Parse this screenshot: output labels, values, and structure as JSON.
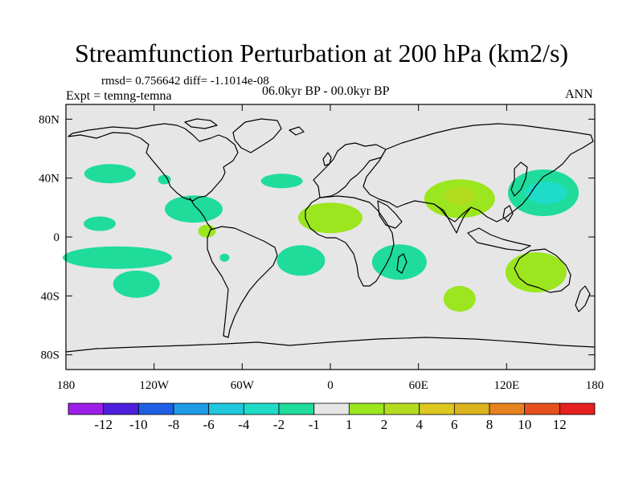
{
  "chart_data": {
    "type": "map-contour",
    "title": "Streamfunction Perturbation at 200 hPa (km2/s)",
    "stats_text": "rmsd= 0.756642 diff= -1.1014e-08",
    "experiment_text": "Expt = temng-temna",
    "period_text": "06.0kyr BP - 00.0kyr BP",
    "season_text": "ANN",
    "x_axis": {
      "range": [
        -180,
        180
      ],
      "ticks": [
        {
          "value": -180,
          "label": "180"
        },
        {
          "value": -120,
          "label": "120W"
        },
        {
          "value": -60,
          "label": "60W"
        },
        {
          "value": 0,
          "label": "0"
        },
        {
          "value": 60,
          "label": "60E"
        },
        {
          "value": 120,
          "label": "120E"
        },
        {
          "value": 180,
          "label": "180"
        }
      ]
    },
    "y_axis": {
      "range": [
        -90,
        90
      ],
      "ticks": [
        {
          "value": 80,
          "label": "80N"
        },
        {
          "value": 40,
          "label": "40N"
        },
        {
          "value": 0,
          "label": "0"
        },
        {
          "value": -40,
          "label": "40S"
        },
        {
          "value": -80,
          "label": "80S"
        }
      ]
    },
    "colorbar": {
      "colors": [
        "#9b1fe6",
        "#4d1fdc",
        "#1f5fe6",
        "#1f9be6",
        "#1fc8dc",
        "#1fdcc8",
        "#1fdc9b",
        "#e6e6e6",
        "#9be61f",
        "#b4dc1f",
        "#dcc81f",
        "#dcb41f",
        "#e6821f",
        "#e6501f",
        "#e61f1f"
      ],
      "labels": [
        "-12",
        "-10",
        "-8",
        "-6",
        "-4",
        "-2",
        "-1",
        "1",
        "2",
        "4",
        "6",
        "8",
        "10",
        "12"
      ]
    },
    "anomalies": [
      {
        "name": "north-pacific-negative-1",
        "lon": -150,
        "lat": 43,
        "level": "-1"
      },
      {
        "name": "central-us-negative-1",
        "lon": -113,
        "lat": 39,
        "level": "-1"
      },
      {
        "name": "north-america-negative-1",
        "lon": -93,
        "lat": 19,
        "level": "-1"
      },
      {
        "name": "north-atlantic-negative-1",
        "lon": -33,
        "lat": 38,
        "level": "-1"
      },
      {
        "name": "tropical-pacific-negative-1",
        "lon": -157,
        "lat": 9,
        "level": "-1"
      },
      {
        "name": "south-pacific-negative-1",
        "lon": -145,
        "lat": -14,
        "level": "-1"
      },
      {
        "name": "southeast-pacific-negative-1",
        "lon": -132,
        "lat": -32,
        "level": "-1"
      },
      {
        "name": "south-america-negative-1",
        "lon": -72,
        "lat": -14,
        "level": "-1"
      },
      {
        "name": "south-atlantic-negative-1",
        "lon": -20,
        "lat": -16,
        "level": "-1"
      },
      {
        "name": "southern-africa-negative-1",
        "lon": 47,
        "lat": -17,
        "level": "-1"
      },
      {
        "name": "northwest-pacific-negative-1",
        "lon": 145,
        "lat": 30,
        "level": "-1"
      },
      {
        "name": "northwest-pacific-negative-2",
        "lon": 147,
        "lat": 30,
        "level": "-2"
      },
      {
        "name": "north-africa-positive-1",
        "lon": 0,
        "lat": 13,
        "level": "1"
      },
      {
        "name": "caribbean-positive-1",
        "lon": -84,
        "lat": 4,
        "level": "1"
      },
      {
        "name": "tibet-positive-1",
        "lon": 88,
        "lat": 26,
        "level": "1"
      },
      {
        "name": "tibet-positive-2",
        "lon": 88,
        "lat": 28,
        "level": "2"
      },
      {
        "name": "australia-positive-1",
        "lon": 140,
        "lat": -24,
        "level": "1"
      },
      {
        "name": "indian-ocean-positive-1",
        "lon": 88,
        "lat": -42,
        "level": "1"
      }
    ]
  }
}
